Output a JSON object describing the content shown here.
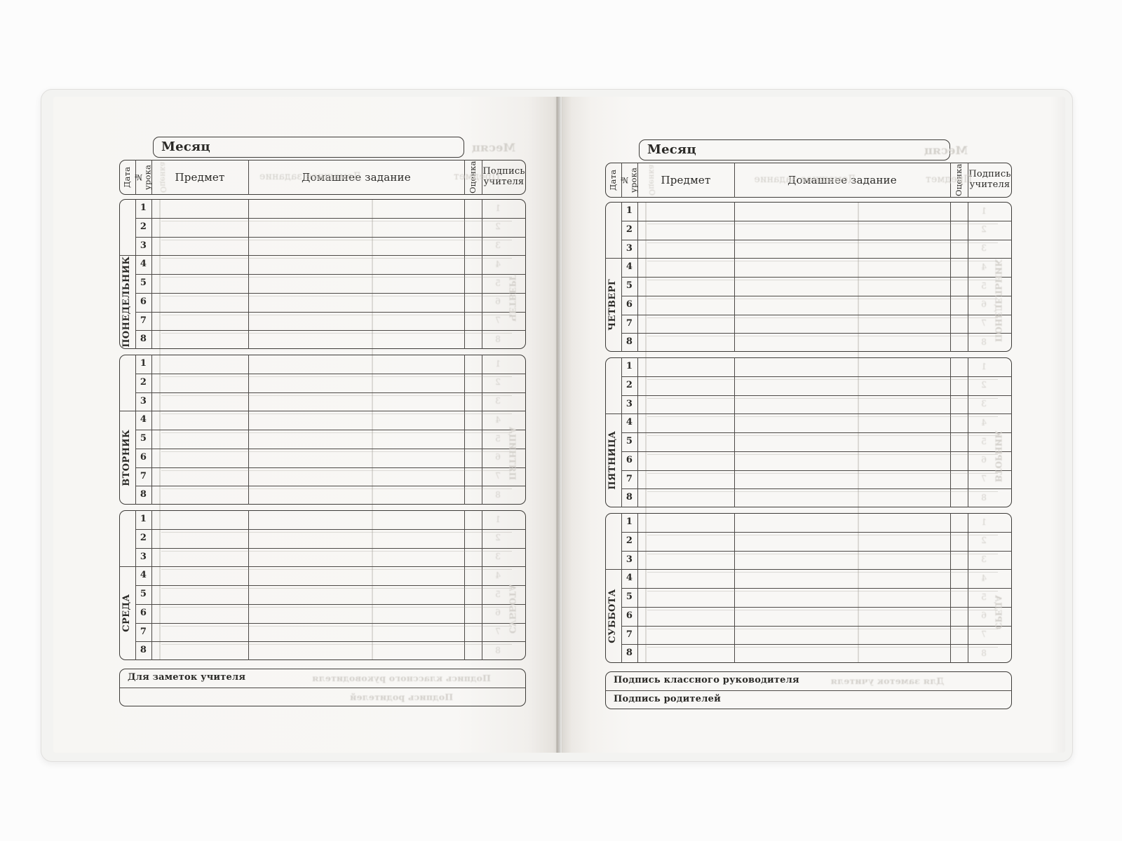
{
  "document_type": "school-diary-week-spread",
  "columns": [
    {
      "label": "Дата"
    },
    {
      "label": "№ урока"
    },
    {
      "label": "Предмет"
    },
    {
      "label": "Домашнее задание"
    },
    {
      "label": "Оценка"
    },
    {
      "label": "Подпись учителя"
    }
  ],
  "lesson_numbers": [
    "1",
    "2",
    "3",
    "4",
    "5",
    "6",
    "7",
    "8"
  ],
  "pages": [
    {
      "side": "left",
      "month_label": "Месяц",
      "days": [
        {
          "name": "ПОНЕДЕЛЬНИК"
        },
        {
          "name": "ВТОРНИК"
        },
        {
          "name": "СРЕДА"
        }
      ],
      "footer_rows": [
        "Для заметок учителя",
        ""
      ],
      "ghost": {
        "month": "Месяц",
        "header_words": [
          "Домашнее задание",
          "Предмет",
          "Оценка"
        ],
        "days": [
          "ЧЕТВЕРГ",
          "ПЯТНИЦА",
          "СУББОТА"
        ],
        "footer_rows": [
          "Подпись классного руководителя",
          "Подпись родителей"
        ]
      }
    },
    {
      "side": "right",
      "month_label": "Месяц",
      "days": [
        {
          "name": "ЧЕТВЕРГ"
        },
        {
          "name": "ПЯТНИЦА"
        },
        {
          "name": "СУББОТА"
        }
      ],
      "footer_rows": [
        "Подпись классного руководителя",
        "Подпись родителей"
      ],
      "ghost": {
        "month": "Месяц",
        "header_words": [
          "Домашнее задание",
          "Предмет",
          "Оценка"
        ],
        "days": [
          "ПОНЕДЕЛЬНИК",
          "ВТОРНИК",
          "СРЕДА"
        ],
        "footer_rows": [
          "Для заметок учителя",
          ""
        ]
      }
    }
  ],
  "colors": {
    "background": "#fcfcfc",
    "cover": "#f3f3f1",
    "paper": "#f8f7f5",
    "grid_line": "#4c4946",
    "text": "#2a2926",
    "show_through": "#d3d0cb"
  }
}
